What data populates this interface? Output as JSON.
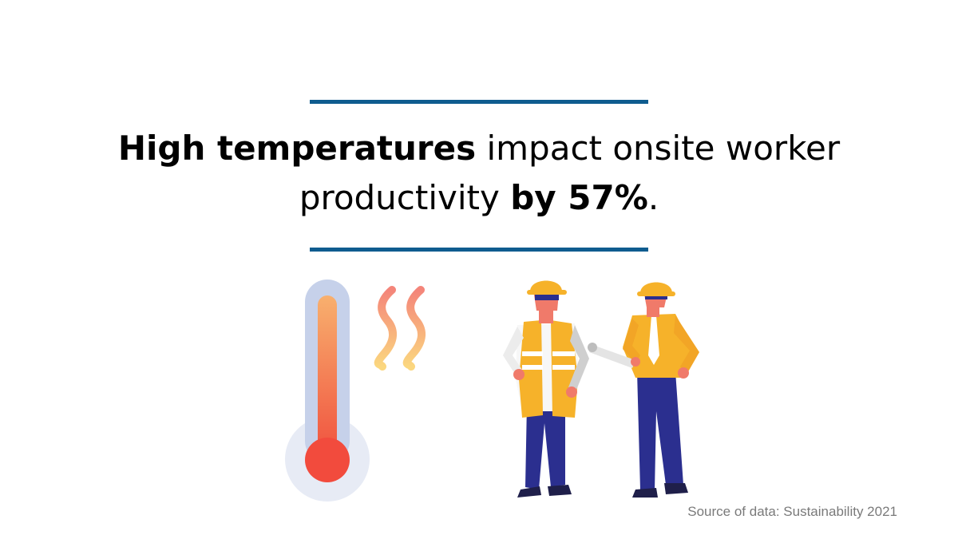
{
  "headline": {
    "part1_bold": "High temperatures",
    "part2": " impact onsite worker productivity ",
    "part3_bold": "by 57%",
    "part4": "."
  },
  "source": "Source of data: Sustainability 2021",
  "illustration": {
    "thermometer": "thermometer-icon",
    "heat_waves": "heat-waves-icon",
    "workers": "construction-workers-illustration"
  },
  "colors": {
    "rule": "#0f5c8f",
    "helmet": "#f6b22a",
    "vest": "#f6b22a",
    "pants": "#2b2f8f",
    "skin": "#f07a6a",
    "thermo_hot": "#f05a48",
    "thermo_warm": "#f8a86a",
    "thermo_glass": "#c9d4ec"
  }
}
